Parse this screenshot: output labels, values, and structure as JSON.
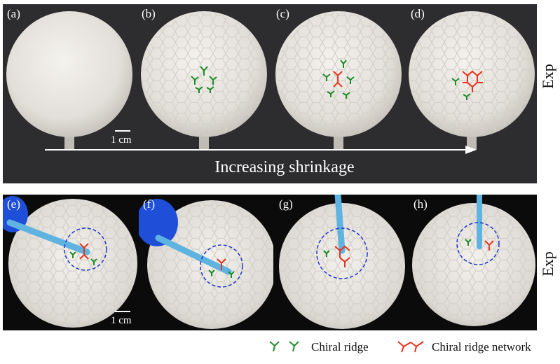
{
  "top_panels": [
    {
      "letter": "(a)"
    },
    {
      "letter": "(b)"
    },
    {
      "letter": "(c)"
    },
    {
      "letter": "(d)"
    }
  ],
  "bottom_panels": [
    {
      "letter": "(e)"
    },
    {
      "letter": "(f)"
    },
    {
      "letter": "(g)"
    },
    {
      "letter": "(h)"
    }
  ],
  "scale_top": "1 cm",
  "scale_bottom": "1 cm",
  "arrow_label": "Increasing shrinkage",
  "side_label_top": "Exp",
  "side_label_bottom": "Exp",
  "legend": {
    "chiral_ridge": "Chiral ridge",
    "chiral_ridge_network": "Chiral ridge network",
    "chiral_color": "#1f8a2a",
    "network_color": "#e8321e"
  },
  "colors": {
    "shell": "#e6e3de",
    "dashed_circle": "#2233cc",
    "rod": "#5fb3e0",
    "glove": "#1f4fd8"
  }
}
